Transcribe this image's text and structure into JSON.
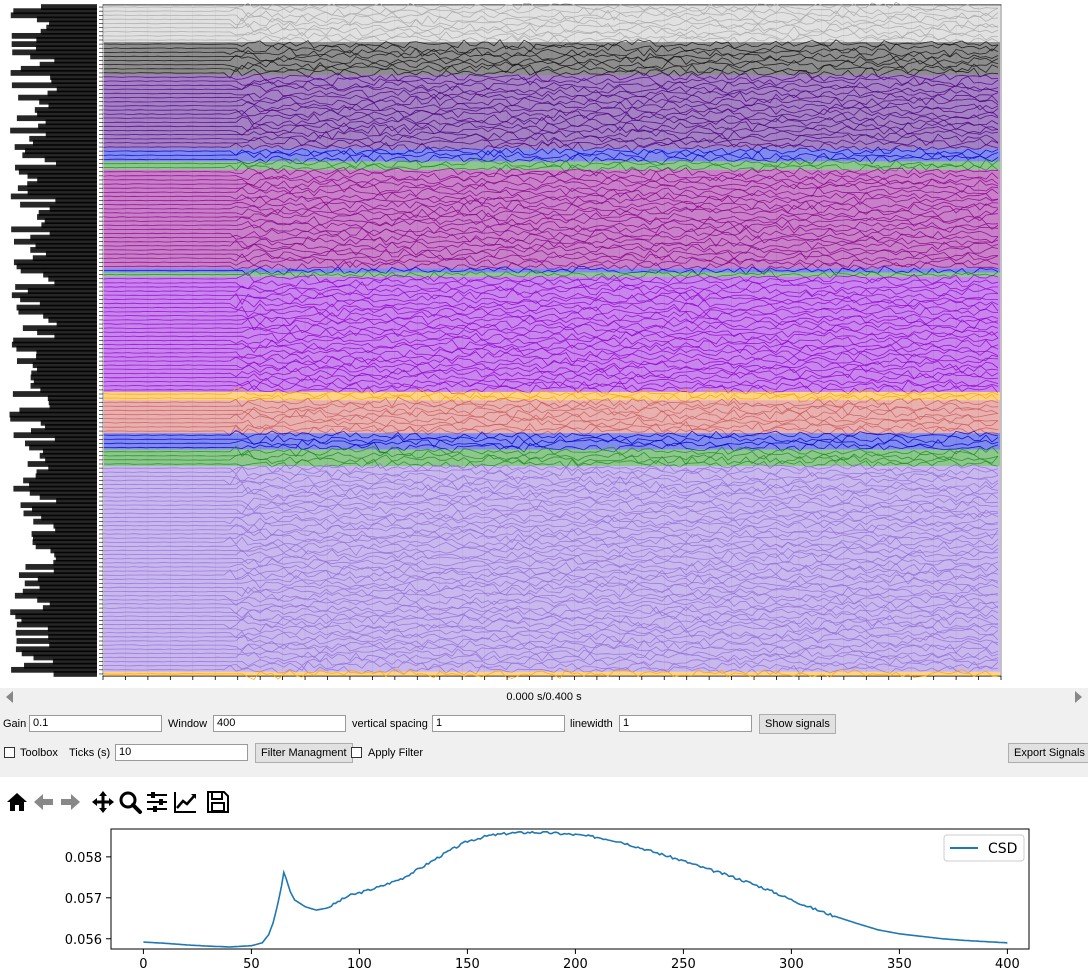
{
  "signal_viewer": {
    "bands": [
      {
        "color": "#a9a9a9",
        "rows": 9,
        "base": "#c8c8c8"
      },
      {
        "color": "#101010",
        "rows": 8,
        "base": "#303030"
      },
      {
        "color": "#4b0082",
        "rows": 18,
        "base": "#5a1a90"
      },
      {
        "color": "#0000cd",
        "rows": 3,
        "base": "#1a2adf"
      },
      {
        "color": "#228b22",
        "rows": 2,
        "base": "#2e9a2e"
      },
      {
        "color": "#8b008b",
        "rows": 24,
        "base": "#9a1a9a"
      },
      {
        "color": "#0000cd",
        "rows": 1,
        "base": "#1a2adf"
      },
      {
        "color": "#228b22",
        "rows": 1,
        "base": "#2e9a2e"
      },
      {
        "color": "#9400d3",
        "rows": 28,
        "base": "#9a20dc"
      },
      {
        "color": "#ffa500",
        "rows": 2,
        "base": "#ffb020"
      },
      {
        "color": "#cd5c5c",
        "rows": 8,
        "base": "#d77070"
      },
      {
        "color": "#0000cd",
        "rows": 4,
        "base": "#1a2adf"
      },
      {
        "color": "#228b22",
        "rows": 4,
        "base": "#2e9a2e"
      },
      {
        "color": "#9370db",
        "rows": 50,
        "base": "#9c7ede"
      },
      {
        "color": "#ffa500",
        "rows": 1,
        "base": "#ffb020"
      }
    ]
  },
  "time_readout": "0.000 s/0.400 s",
  "controls": {
    "gain_label": "Gain",
    "gain_value": "0.1",
    "window_label": "Window",
    "window_value": "400",
    "vspacing_label": "vertical spacing",
    "vspacing_value": "1",
    "linewidth_label": "linewidth",
    "linewidth_value": "1",
    "show_signals": "Show signals",
    "toolbox_label": "Toolbox",
    "ticks_label": "Ticks (s)",
    "ticks_value": "10",
    "filter_management": "Filter Managment",
    "apply_filter_label": "Apply Filter",
    "export_signals": "Export Signals"
  },
  "toolbar_icons": [
    "home-icon",
    "back-arrow-icon",
    "forward-arrow-icon",
    "pan-icon",
    "zoom-icon",
    "configure-subplots-icon",
    "edit-axis-icon",
    "save-icon"
  ],
  "chart_data": {
    "type": "line",
    "title": "",
    "xlabel": "",
    "ylabel": "",
    "xlim": [
      -15,
      410
    ],
    "ylim": [
      0.05575,
      0.05868
    ],
    "xticks": [
      0,
      50,
      100,
      150,
      200,
      250,
      300,
      350,
      400
    ],
    "xtick_labels": [
      "0",
      "50",
      "100",
      "150",
      "200",
      "250",
      "300",
      "350",
      "400"
    ],
    "yticks": [
      0.056,
      0.057,
      0.058
    ],
    "ytick_labels": [
      "0.056",
      "0.057",
      "0.058"
    ],
    "legend_position": "top-right",
    "series": [
      {
        "name": "CSD",
        "color": "#1f77b4",
        "x": [
          0,
          10,
          20,
          30,
          40,
          50,
          55,
          58,
          60,
          62,
          64,
          65,
          66,
          68,
          70,
          72,
          75,
          80,
          85,
          90,
          95,
          100,
          110,
          120,
          130,
          140,
          150,
          160,
          170,
          180,
          190,
          200,
          210,
          220,
          230,
          240,
          250,
          260,
          270,
          280,
          290,
          300,
          310,
          320,
          330,
          340,
          350,
          360,
          370,
          380,
          390,
          400
        ],
        "values": [
          0.05592,
          0.05589,
          0.05585,
          0.05582,
          0.0558,
          0.05583,
          0.0559,
          0.0561,
          0.05638,
          0.0568,
          0.0573,
          0.05762,
          0.05748,
          0.05715,
          0.05695,
          0.05688,
          0.05678,
          0.0567,
          0.05675,
          0.0569,
          0.05705,
          0.05712,
          0.05728,
          0.05748,
          0.05778,
          0.0581,
          0.05838,
          0.05852,
          0.05858,
          0.0586,
          0.05858,
          0.05854,
          0.05848,
          0.05838,
          0.05822,
          0.05806,
          0.0579,
          0.05772,
          0.05756,
          0.05738,
          0.05718,
          0.05695,
          0.05674,
          0.05655,
          0.05638,
          0.05622,
          0.05612,
          0.05606,
          0.056,
          0.05596,
          0.05593,
          0.0559
        ]
      }
    ]
  }
}
